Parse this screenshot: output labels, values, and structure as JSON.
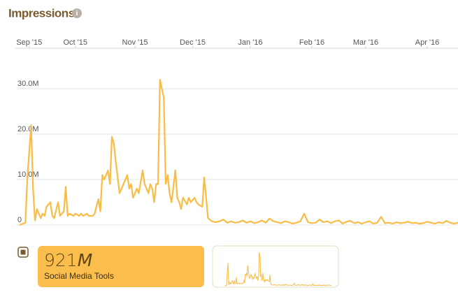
{
  "chart_data": {
    "type": "line",
    "title": "Impressions",
    "x": [
      0,
      3,
      4,
      6,
      7,
      8,
      9,
      11,
      12,
      13,
      14,
      16,
      17,
      18,
      20,
      21,
      23,
      24,
      25,
      26,
      28,
      29,
      31,
      32,
      33,
      35,
      36,
      38,
      39,
      41,
      42,
      43,
      44,
      46,
      47,
      48,
      49,
      50,
      52,
      53,
      54,
      56,
      57,
      58,
      59,
      61,
      62,
      64,
      65,
      67,
      68,
      69,
      70,
      71,
      72,
      73,
      75,
      76,
      77,
      78,
      79,
      81,
      82,
      83,
      84,
      85,
      87,
      88,
      89,
      91,
      92,
      93,
      95,
      96,
      97,
      98,
      100,
      102,
      104,
      106,
      108,
      110,
      112,
      114,
      116,
      118,
      120,
      122,
      124,
      126,
      128,
      130,
      132,
      134,
      136,
      138,
      140,
      142,
      144,
      146,
      148,
      150,
      152,
      154,
      156,
      158,
      160,
      162,
      164,
      166,
      168,
      170,
      172,
      174,
      176,
      178,
      180,
      182,
      184,
      186,
      188,
      190,
      192,
      194,
      196,
      198,
      200,
      202,
      204,
      206,
      208,
      210,
      212,
      214,
      216,
      218,
      220,
      222,
      224,
      226,
      228
    ],
    "series": [
      {
        "name": "Social Media Tools",
        "color": "#f9bc45",
        "values": [
          0,
          0.5,
          10,
          22,
          8,
          1,
          3.5,
          1.5,
          2.5,
          2,
          4,
          5,
          2,
          1.5,
          5,
          2,
          3,
          8.4,
          2,
          2.5,
          2,
          2.5,
          2,
          2.5,
          2,
          2.5,
          2,
          2,
          2.5,
          5.7,
          3,
          11,
          10,
          12,
          9,
          19.4,
          18,
          14,
          7,
          8,
          9,
          11,
          8,
          9,
          6,
          8,
          7,
          12,
          9,
          7,
          9,
          8,
          5,
          9,
          9,
          32,
          28,
          9,
          11,
          7,
          5,
          12,
          6,
          5,
          3.5,
          6,
          4.5,
          6,
          5,
          6,
          5,
          4.5,
          4,
          10.5,
          6,
          1.5,
          0.8,
          0.6,
          0.8,
          1.2,
          0.5,
          0.8,
          0.5,
          0.6,
          1.0,
          0.5,
          0.8,
          0.4,
          0.6,
          1.0,
          0.5,
          1.4,
          0.8,
          0.6,
          0.4,
          0.8,
          0.6,
          0.3,
          0.5,
          0.8,
          2.5,
          0.6,
          0.4,
          0.5,
          1.2,
          0.6,
          0.8,
          0.4,
          0.8,
          1.0,
          0.3,
          0.7,
          0.9,
          0.4,
          0.6,
          0.3,
          0.6,
          0.8,
          0.3,
          0.5,
          1.8,
          0.4,
          0.5,
          0.3,
          0.6,
          0.4,
          0.5,
          0.7,
          0.4,
          0.5,
          0.3,
          0.4,
          0.7,
          0.5,
          0.3,
          0.6,
          0.4,
          0.9,
          0.5,
          0.3,
          0.5
        ]
      }
    ],
    "xlim": [
      0,
      228
    ],
    "xticks": [
      {
        "value": 5,
        "label": "Sep '15"
      },
      {
        "value": 29,
        "label": "Oct '15"
      },
      {
        "value": 60,
        "label": "Nov '15"
      },
      {
        "value": 90,
        "label": "Dec '15"
      },
      {
        "value": 120,
        "label": "Jan '16"
      },
      {
        "value": 152,
        "label": "Feb '16"
      },
      {
        "value": 180,
        "label": "Mar '16"
      },
      {
        "value": 212,
        "label": "Apr '16"
      }
    ],
    "ylim": [
      0,
      38
    ],
    "yticks": [
      0,
      {
        "value": 10,
        "label": "10.0M"
      },
      {
        "value": 20,
        "label": "20.0M"
      },
      {
        "value": 30,
        "label": "30.0M"
      }
    ],
    "grid": true,
    "summary": {
      "total": "921",
      "unit": "M"
    }
  }
}
